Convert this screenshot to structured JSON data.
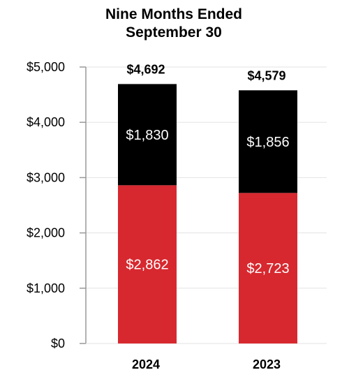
{
  "chart_data": {
    "type": "bar",
    "stacked": true,
    "title_lines": [
      "Nine Months Ended",
      "September 30"
    ],
    "categories": [
      "2024",
      "2023"
    ],
    "series": [
      {
        "values": [
          2862,
          2723
        ],
        "labels": [
          "$2,862",
          "$2,723"
        ],
        "color": "#d7282f"
      },
      {
        "values": [
          1830,
          1856
        ],
        "labels": [
          "$1,830",
          "$1,856"
        ],
        "color": "#000000"
      }
    ],
    "totals": [
      4692,
      4579
    ],
    "total_labels": [
      "$4,692",
      "$4,579"
    ],
    "ylim": [
      0,
      5000
    ],
    "yticks": [
      0,
      1000,
      2000,
      3000,
      4000,
      5000
    ],
    "ytick_labels": [
      "$0",
      "$1,000",
      "$2,000",
      "$3,000",
      "$4,000",
      "$5,000"
    ],
    "grid": true,
    "legend": "none"
  }
}
